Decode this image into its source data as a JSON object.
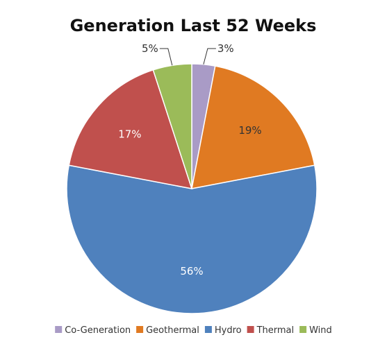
{
  "chart_data": {
    "type": "pie",
    "title": "Generation Last 52 Weeks",
    "slices": [
      {
        "label": "Co-Generation",
        "value": 3,
        "value_label": "3%",
        "color": "#a99bc6",
        "label_color": "#333333"
      },
      {
        "label": "Geothermal",
        "value": 19,
        "value_label": "19%",
        "color": "#e07a22",
        "label_color": "#333333"
      },
      {
        "label": "Hydro",
        "value": 56,
        "value_label": "56%",
        "color": "#4f81bd",
        "label_color": "#ffffff"
      },
      {
        "label": "Thermal",
        "value": 17,
        "value_label": "17%",
        "color": "#c0504d",
        "label_color": "#ffffff"
      },
      {
        "label": "Wind",
        "value": 5,
        "value_label": "5%",
        "color": "#9bbb59",
        "label_color": "#333333"
      }
    ],
    "legend_position": "bottom"
  }
}
